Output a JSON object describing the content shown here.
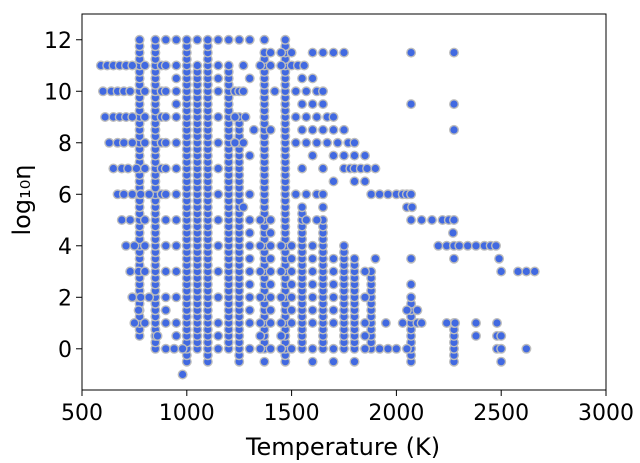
{
  "chart_data": {
    "type": "scatter",
    "xlabel": "Temperature (K)",
    "ylabel": "log₁₀η",
    "xlim": [
      500,
      3000
    ],
    "ylim": [
      -1.6,
      13
    ],
    "xticks": [
      500,
      1000,
      1500,
      2000,
      2500,
      3000
    ],
    "yticks": [
      0,
      2,
      4,
      6,
      8,
      10,
      12
    ],
    "grid": false,
    "point_color": "#4169e1",
    "edge_color": "#bdbdbd",
    "points": {
      "rows": [
        {
          "y": 12,
          "x": [
            775,
            850,
            900,
            950,
            1000,
            1050,
            1100,
            1150,
            1200,
            1250,
            1300,
            1370,
            1470
          ]
        },
        {
          "y": 11.5,
          "x": [
            775,
            850,
            1400,
            1450,
            1500,
            1600,
            1650,
            1700,
            1750,
            2070,
            2275
          ]
        },
        {
          "y": 11,
          "x": [
            590,
            620,
            650,
            680,
            710,
            740,
            775,
            800,
            850,
            880,
            900,
            950,
            1000,
            1050,
            1100,
            1150,
            1200,
            1270,
            1350,
            1370,
            1400,
            1450,
            1470,
            1500,
            1530,
            1560
          ]
        },
        {
          "y": 10.5,
          "x": [
            775,
            850,
            950,
            1050,
            1150,
            1200,
            1300,
            1470,
            1550,
            1600
          ]
        },
        {
          "y": 10,
          "x": [
            600,
            640,
            670,
            700,
            730,
            775,
            800,
            850,
            880,
            900,
            950,
            1000,
            1050,
            1100,
            1150,
            1200,
            1230,
            1250,
            1270,
            1370,
            1420,
            1470,
            1520,
            1570,
            1620,
            1650
          ]
        },
        {
          "y": 9.5,
          "x": [
            775,
            850,
            950,
            1050,
            1470,
            1550,
            1600,
            1650,
            2070,
            2275
          ]
        },
        {
          "y": 9,
          "x": [
            610,
            650,
            680,
            710,
            740,
            775,
            800,
            850,
            880,
            900,
            950,
            1000,
            1050,
            1100,
            1150,
            1200,
            1230,
            1250,
            1280,
            1470,
            1520,
            1570,
            1620,
            1670,
            1700
          ]
        },
        {
          "y": 8.5,
          "x": [
            775,
            850,
            1000,
            1100,
            1200,
            1250,
            1320,
            1400,
            1470,
            1550,
            1600,
            1650,
            1700,
            1750,
            2275
          ]
        },
        {
          "y": 8,
          "x": [
            630,
            670,
            700,
            740,
            775,
            800,
            850,
            880,
            900,
            950,
            1000,
            1050,
            1100,
            1150,
            1200,
            1230,
            1270,
            1470,
            1520,
            1570,
            1620,
            1670,
            1720,
            1770,
            1800
          ]
        },
        {
          "y": 7.5,
          "x": [
            775,
            850,
            1000,
            1100,
            1200,
            1300,
            1470,
            1600,
            1700,
            1750,
            1800,
            1850
          ]
        },
        {
          "y": 7,
          "x": [
            650,
            690,
            720,
            760,
            800,
            850,
            880,
            900,
            950,
            1000,
            1050,
            1100,
            1150,
            1200,
            1250,
            1470,
            1550,
            1650,
            1750,
            1780,
            1800,
            1830,
            1860,
            1900
          ]
        },
        {
          "y": 6.5,
          "x": [
            775,
            850,
            1000,
            1100,
            1200,
            1250,
            1470,
            1700,
            1800,
            1850
          ]
        },
        {
          "y": 6,
          "x": [
            670,
            700,
            740,
            780,
            820,
            850,
            880,
            900,
            950,
            1000,
            1050,
            1100,
            1150,
            1200,
            1250,
            1300,
            1370,
            1470,
            1520,
            1570,
            1620,
            1650,
            1880,
            1920,
            1960,
            2000,
            2030,
            2050,
            2070
          ]
        },
        {
          "y": 5.5,
          "x": [
            775,
            850,
            1000,
            1100,
            1200,
            1270,
            1370,
            1470,
            1550,
            1650,
            2050,
            2075
          ]
        },
        {
          "y": 5,
          "x": [
            690,
            730,
            775,
            800,
            850,
            900,
            950,
            1000,
            1050,
            1100,
            1150,
            1200,
            1250,
            1300,
            1350,
            1400,
            1470,
            1570,
            1620,
            1650,
            2070,
            2120,
            2170,
            2220,
            2250,
            2275
          ]
        },
        {
          "y": 4.5,
          "x": [
            775,
            850,
            1000,
            1100,
            1200,
            1300,
            1400,
            1470,
            1550,
            1650,
            2270
          ]
        },
        {
          "y": 4,
          "x": [
            710,
            750,
            800,
            850,
            900,
            950,
            1000,
            1050,
            1100,
            1150,
            1200,
            1250,
            1300,
            1350,
            1400,
            1450,
            1500,
            1550,
            1600,
            1650,
            1750,
            2200,
            2240,
            2275,
            2300,
            2340,
            2380,
            2420,
            2450,
            2475
          ]
        },
        {
          "y": 3.5,
          "x": [
            775,
            850,
            1000,
            1100,
            1200,
            1300,
            1400,
            1500,
            1600,
            1700,
            1800,
            1900,
            2070,
            2275,
            2490
          ]
        },
        {
          "y": 3,
          "x": [
            730,
            770,
            800,
            850,
            900,
            950,
            1000,
            1050,
            1100,
            1150,
            1200,
            1250,
            1300,
            1350,
            1400,
            1450,
            1500,
            1550,
            1600,
            1650,
            1700,
            1750,
            1800,
            1850,
            1880,
            2500,
            2580,
            2620,
            2660
          ]
        },
        {
          "y": 2.5,
          "x": [
            775,
            850,
            1000,
            1100,
            1200,
            1300,
            1400,
            1500,
            1600,
            1700,
            1800,
            1880,
            2070
          ]
        },
        {
          "y": 2,
          "x": [
            740,
            780,
            820,
            850,
            900,
            950,
            1000,
            1050,
            1100,
            1150,
            1200,
            1250,
            1300,
            1350,
            1400,
            1450,
            1500,
            1550,
            1600,
            1650,
            1700,
            1750,
            1800,
            1850,
            1880,
            2070
          ]
        },
        {
          "y": 1.5,
          "x": [
            770,
            850,
            900,
            1000,
            1100,
            1200,
            1300,
            1400,
            1500,
            1600,
            1700,
            1800,
            1880,
            2050,
            2070,
            2100
          ]
        },
        {
          "y": 1,
          "x": [
            750,
            800,
            850,
            900,
            950,
            1000,
            1050,
            1100,
            1150,
            1200,
            1250,
            1300,
            1350,
            1400,
            1450,
            1500,
            1550,
            1600,
            1650,
            1700,
            1750,
            1800,
            1850,
            1880,
            1950,
            2030,
            2070,
            2100,
            2120,
            2240,
            2280,
            2380,
            2480
          ]
        },
        {
          "y": 0.5,
          "x": [
            860,
            950,
            1050,
            1150,
            1250,
            1350,
            1450,
            1550,
            1650,
            1750,
            1850,
            2070,
            2275,
            2380,
            2480,
            2500
          ]
        },
        {
          "y": 0,
          "x": [
            900,
            940,
            980,
            1000,
            1050,
            1100,
            1150,
            1200,
            1250,
            1300,
            1350,
            1400,
            1450,
            1500,
            1550,
            1600,
            1650,
            1700,
            1750,
            1800,
            1850,
            1880,
            1920,
            1960,
            2000,
            2050,
            2070,
            2275,
            2480,
            2500,
            2620
          ]
        },
        {
          "y": -0.5,
          "x": [
            1000,
            1100,
            1250,
            1370,
            1470,
            1600,
            1700,
            1800,
            2070,
            2275,
            2500
          ]
        },
        {
          "y": -1,
          "x": [
            980
          ]
        }
      ],
      "columns": [
        {
          "x": 775,
          "ymin": 0.5,
          "ymax": 12
        },
        {
          "x": 850,
          "ymin": 0,
          "ymax": 12
        },
        {
          "x": 1000,
          "ymin": -0.5,
          "ymax": 12
        },
        {
          "x": 1050,
          "ymin": 0,
          "ymax": 11
        },
        {
          "x": 1100,
          "ymin": -0.5,
          "ymax": 12
        },
        {
          "x": 1200,
          "ymin": 0,
          "ymax": 11
        },
        {
          "x": 1250,
          "ymin": -0.5,
          "ymax": 9
        },
        {
          "x": 1370,
          "ymin": 0,
          "ymax": 11.5
        },
        {
          "x": 1470,
          "ymin": -0.5,
          "ymax": 12
        },
        {
          "x": 1550,
          "ymin": 0,
          "ymax": 5.5
        },
        {
          "x": 1650,
          "ymin": 0,
          "ymax": 5
        },
        {
          "x": 1750,
          "ymin": 0,
          "ymax": 4
        },
        {
          "x": 1800,
          "ymin": 0,
          "ymax": 3.5
        },
        {
          "x": 1880,
          "ymin": 0,
          "ymax": 3
        },
        {
          "x": 2070,
          "ymin": -0.5,
          "ymax": 2
        },
        {
          "x": 2275,
          "ymin": -0.5,
          "ymax": 1
        }
      ]
    }
  }
}
